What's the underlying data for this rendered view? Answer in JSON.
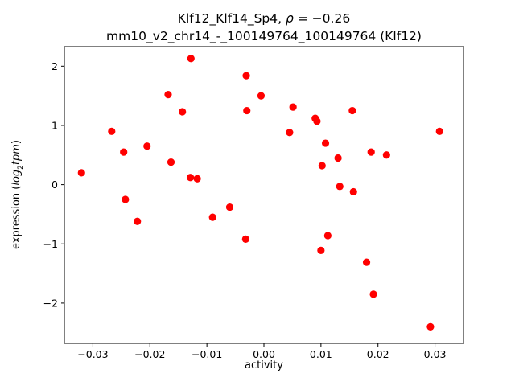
{
  "figure": {
    "title_line1": {
      "prefix": "Klf12_Klf14_Sp4, ",
      "rho": "ρ",
      "suffix": " = −0.26"
    },
    "title_line2": "mm10_v2_chr14_-_100149764_100149764 (Klf12)",
    "xlabel": "activity",
    "ylabel": {
      "prefix": "expression (",
      "log": "log",
      "sub": "2",
      "tpm": "tpm",
      "suffix": ")"
    }
  },
  "chart_data": {
    "type": "scatter",
    "title": "Klf12_Klf14_Sp4, ρ = −0.26",
    "subtitle": "mm10_v2_chr14_-_100149764_100149764 (Klf12)",
    "xlabel": "activity",
    "ylabel": "expression (log2 tpm)",
    "legend": "none",
    "grid": false,
    "marker_color": "#ff0000",
    "xlim": [
      -0.035,
      0.035
    ],
    "ylim": [
      -2.68,
      2.33
    ],
    "xticks": {
      "values": [
        -0.03,
        -0.02,
        -0.01,
        0.0,
        0.01,
        0.02,
        0.03
      ],
      "labels": [
        "−0.03",
        "−0.02",
        "−0.01",
        "0.00",
        "0.01",
        "0.02",
        "0.03"
      ]
    },
    "yticks": {
      "values": [
        -2,
        -1,
        0,
        1,
        2
      ],
      "labels": [
        "−2",
        "−1",
        "0",
        "1",
        "2"
      ]
    },
    "points": [
      [
        -0.032,
        0.2
      ],
      [
        -0.0267,
        0.9
      ],
      [
        -0.0246,
        0.55
      ],
      [
        -0.0243,
        -0.25
      ],
      [
        -0.0222,
        -0.62
      ],
      [
        -0.0205,
        0.65
      ],
      [
        -0.0168,
        1.52
      ],
      [
        -0.0163,
        0.38
      ],
      [
        -0.0143,
        1.23
      ],
      [
        -0.0128,
        2.13
      ],
      [
        -0.0129,
        0.12
      ],
      [
        -0.0117,
        0.1
      ],
      [
        -0.009,
        -0.55
      ],
      [
        -0.006,
        -0.38
      ],
      [
        -0.0032,
        -0.92
      ],
      [
        -0.0031,
        1.84
      ],
      [
        -0.003,
        1.25
      ],
      [
        -0.0005,
        1.5
      ],
      [
        0.0045,
        0.88
      ],
      [
        0.0051,
        1.31
      ],
      [
        0.009,
        1.12
      ],
      [
        0.0093,
        1.07
      ],
      [
        0.01,
        -1.11
      ],
      [
        0.0102,
        0.32
      ],
      [
        0.0108,
        0.7
      ],
      [
        0.0112,
        -0.86
      ],
      [
        0.013,
        0.45
      ],
      [
        0.0133,
        -0.03
      ],
      [
        0.0155,
        1.25
      ],
      [
        0.0157,
        -0.12
      ],
      [
        0.018,
        -1.31
      ],
      [
        0.0188,
        0.55
      ],
      [
        0.0192,
        -1.85
      ],
      [
        0.0215,
        0.5
      ],
      [
        0.0292,
        -2.4
      ],
      [
        0.0308,
        0.9
      ]
    ]
  }
}
